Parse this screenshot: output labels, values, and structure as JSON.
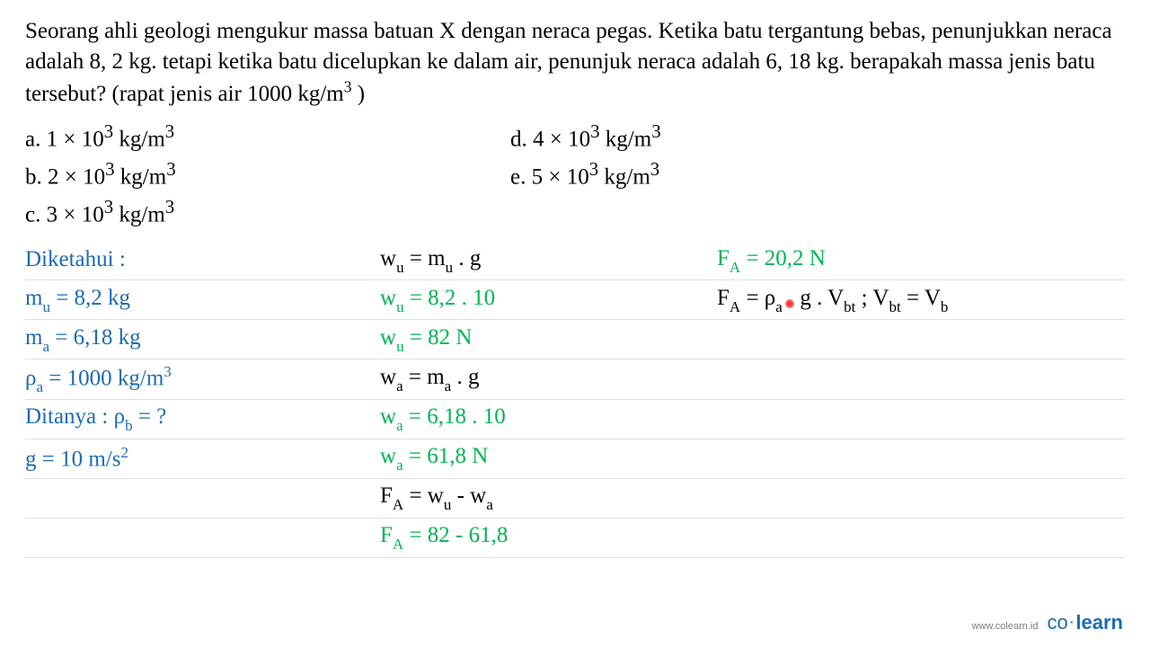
{
  "problem": {
    "text_html": "Seorang ahli geologi mengukur massa batuan X dengan neraca pegas. Ketika batu tergantung bebas, penunjukkan neraca adalah 8, 2 kg. tetapi ketika batu dicelupkan ke dalam air, penunjuk neraca adalah 6, 18 kg. berapakah massa jenis batu tersebut? (rapat jenis air 1000 kg/m<sup>3</sup> )"
  },
  "options": {
    "left": [
      {
        "label": "a.",
        "value_html": "1 × 10<sup>3</sup> kg/m<sup>3</sup>"
      },
      {
        "label": "b.",
        "value_html": "2 × 10<sup>3</sup> kg/m<sup>3</sup>"
      },
      {
        "label": "c.",
        "value_html": "3 × 10<sup>3</sup> kg/m<sup>3</sup>"
      }
    ],
    "right": [
      {
        "label": "d.",
        "value_html": "4 × 10<sup>3</sup> kg/m<sup>3</sup>"
      },
      {
        "label": "e.",
        "value_html": "5 × 10<sup>3</sup> kg/m<sup>3</sup>"
      }
    ]
  },
  "work": {
    "colors": {
      "green": "#00b552",
      "blue": "#1d6bb5",
      "black": "#000000",
      "rule": "#e0e0e0",
      "red": "#ff1a1a"
    },
    "rows": [
      {
        "c1": {
          "color": "blue",
          "html": "Diketahui :"
        },
        "c2": {
          "color": "black",
          "html": "w<span class='sub'>u</span> = m<span class='sub'>u</span> . g"
        },
        "c3": {
          "color": "green",
          "html": "F<span class='sub'>A</span> = 20,2 N"
        }
      },
      {
        "c1": {
          "color": "blue",
          "html": "m<span class='sub'>u</span> = 8,2 kg"
        },
        "c2": {
          "color": "green",
          "html": "w<span class='sub'>u</span> = 8,2 . 10"
        },
        "c3": {
          "color": "black",
          "html": "F<span class='sub'>A</span> = ρ<span class='sub'>a</span> <span class='red-dot'></span> g . V<span class='sub'>bt</span> ; V<span class='sub'>bt</span> = V<span class='sub'>b</span>"
        }
      },
      {
        "c1": {
          "color": "blue",
          "html": "m<span class='sub'>a</span> = 6,18 kg"
        },
        "c2": {
          "color": "green",
          "html": "w<span class='sub'>u</span> = 82 N"
        },
        "c3": null
      },
      {
        "c1": {
          "color": "blue",
          "html": "ρ<span class='sub'>a</span> = 1000 kg/m<span class='sup'>3</span>"
        },
        "c2": {
          "color": "black",
          "html": "w<span class='sub'>a</span> = m<span class='sub'>a</span> . g"
        },
        "c3": null
      },
      {
        "c1": {
          "color": "blue",
          "html": "Ditanya : ρ<span class='sub'>b</span> = ?"
        },
        "c2": {
          "color": "green",
          "html": "w<span class='sub'>a</span> = 6,18 . 10"
        },
        "c3": null
      },
      {
        "c1": {
          "color": "blue",
          "html": "g = 10 m/s<span class='sup'>2</span>"
        },
        "c2": {
          "color": "green",
          "html": "w<span class='sub'>a</span> = 61,8 N"
        },
        "c3": null
      },
      {
        "c1": null,
        "c2": {
          "color": "black",
          "html": "F<span class='sub'>A</span> = w<span class='sub'>u</span> - w<span class='sub'>a</span>"
        },
        "c3": null
      },
      {
        "c1": null,
        "c2": {
          "color": "green",
          "html": "F<span class='sub'>A</span> = 82 - 61,8"
        },
        "c3": null
      }
    ]
  },
  "footer": {
    "url": "www.colearn.id",
    "brand_co": "co",
    "brand_dot": "·",
    "brand_learn": "learn"
  }
}
